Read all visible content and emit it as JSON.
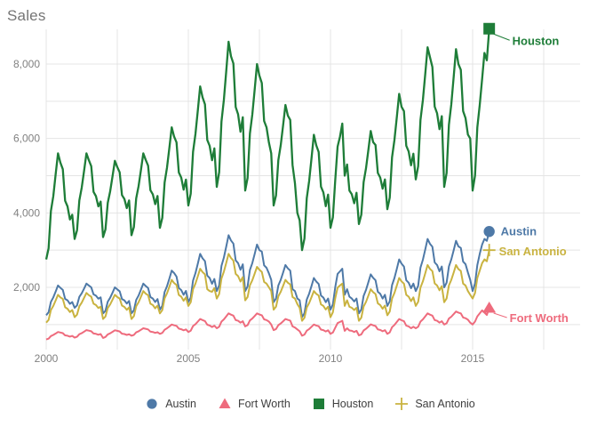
{
  "title": {
    "text": "Sales"
  },
  "legend": {
    "items": [
      {
        "label": "Austin"
      },
      {
        "label": "Fort Worth"
      },
      {
        "label": "Houston"
      },
      {
        "label": "San Antonio"
      }
    ]
  },
  "axes": {
    "x_tick_labels": [
      "2000",
      "2005",
      "2010",
      "2015"
    ],
    "y_tick_labels": [
      "2,000",
      "4,000",
      "6,000",
      "8,000"
    ]
  },
  "colors": {
    "austin": "#4e79a7",
    "fort_worth": "#ee6b7d",
    "houston": "#1e7d38",
    "san_antonio": "#c9b340",
    "grid": "#e4e4e4",
    "axis_text": "#818181",
    "title_text": "#757575",
    "legend_text": "#3f3f3f"
  },
  "chart_data": {
    "type": "line",
    "title": "Sales",
    "ylabel": "Sales",
    "x_start_year": 2000,
    "x_step_months": 1,
    "x_ticks": [
      {
        "value": 2000,
        "label": "2000"
      },
      {
        "value": 2005,
        "label": "2005"
      },
      {
        "value": 2010,
        "label": "2010"
      },
      {
        "value": 2015,
        "label": "2015"
      }
    ],
    "x_gridline_step_years": 2.5,
    "x_gridline_max": 2017.5,
    "y_ticks": [
      {
        "value": 2000,
        "label": "2,000"
      },
      {
        "value": 4000,
        "label": "4,000"
      },
      {
        "value": 6000,
        "label": "6,000"
      },
      {
        "value": 8000,
        "label": "8,000"
      }
    ],
    "y_gridline_step": 1000,
    "y_range": [
      320,
      8940
    ],
    "x_range": [
      2000,
      2018.8
    ],
    "grid": true,
    "legend_position": "bottom",
    "series": [
      {
        "name": "Austin",
        "color": "#4e79a7",
        "marker": "circle",
        "end_label": "Austin",
        "values": [
          1250,
          1330,
          1610,
          1730,
          1890,
          2050,
          1985,
          1930,
          1690,
          1650,
          1555,
          1605,
          1450,
          1515,
          1745,
          1840,
          1970,
          2100,
          2050,
          2000,
          1810,
          1775,
          1695,
          1730,
          1300,
          1370,
          1615,
          1720,
          1860,
          2000,
          1945,
          1895,
          1685,
          1650,
          1565,
          1635,
          1300,
          1380,
          1660,
          1780,
          1940,
          2100,
          2035,
          1980,
          1740,
          1700,
          1605,
          1685,
          1400,
          1505,
          1875,
          2030,
          2240,
          2450,
          2385,
          2290,
          1980,
          1925,
          1800,
          1905,
          1600,
          1730,
          2185,
          2380,
          2640,
          2900,
          2780,
          2705,
          2315,
          2250,
          2095,
          2225,
          1900,
          2050,
          2575,
          2800,
          3100,
          3400,
          3260,
          3175,
          2725,
          2650,
          2470,
          2620,
          1900,
          2025,
          2465,
          2650,
          2900,
          3150,
          3000,
          2960,
          2590,
          2525,
          2375,
          2200,
          1600,
          1700,
          2050,
          2200,
          2400,
          2600,
          2510,
          2450,
          1950,
          1900,
          1700,
          1650,
          1200,
          1305,
          1670,
          1830,
          2040,
          2250,
          2155,
          2090,
          1780,
          1725,
          1600,
          1700,
          1400,
          1540,
          1995,
          2360,
          2430,
          2500,
          1800,
          1950,
          1750,
          1700,
          1620,
          1700,
          1300,
          1405,
          1770,
          1930,
          2140,
          2350,
          2255,
          2190,
          1880,
          1825,
          1700,
          1800,
          1500,
          1625,
          2060,
          2250,
          2500,
          2750,
          2635,
          2560,
          2190,
          2125,
          1975,
          2100,
          1900,
          2040,
          2530,
          2740,
          3020,
          3300,
          3170,
          3090,
          2670,
          2600,
          2430,
          2560,
          2000,
          2125,
          2560,
          2750,
          3000,
          3250,
          3100,
          3060,
          2690,
          2625,
          2400,
          2200,
          1900,
          2100,
          2600,
          2900,
          3150,
          3300,
          3250,
          3500
        ]
      },
      {
        "name": "Fort Worth",
        "color": "#ee6b7d",
        "marker": "triangle",
        "end_label": "Fort Worth",
        "values": [
          600,
          620,
          690,
          720,
          760,
          800,
          785,
          770,
          710,
          700,
          675,
          695,
          650,
          670,
          740,
          770,
          810,
          850,
          835,
          820,
          760,
          750,
          725,
          745,
          640,
          665,
          735,
          765,
          805,
          845,
          830,
          815,
          755,
          745,
          720,
          740,
          700,
          720,
          790,
          820,
          860,
          900,
          885,
          870,
          810,
          800,
          775,
          795,
          750,
          775,
          860,
          900,
          950,
          1000,
          980,
          965,
          890,
          875,
          845,
          870,
          800,
          835,
          960,
          1010,
          1080,
          1150,
          1120,
          1095,
          995,
          975,
          935,
          970,
          900,
          940,
          1080,
          1140,
          1220,
          1300,
          1265,
          1240,
          1120,
          1100,
          1050,
          1090,
          950,
          985,
          1110,
          1160,
          1230,
          1300,
          1270,
          1250,
          1140,
          1120,
          1080,
          1000,
          850,
          880,
          985,
          1030,
          1090,
          1150,
          1125,
          1105,
          950,
          920,
          870,
          820,
          700,
          730,
          835,
          880,
          940,
          1000,
          975,
          955,
          865,
          850,
          815,
          845,
          750,
          785,
          910,
          1040,
          1070,
          1100,
          830,
          900,
          840,
          830,
          800,
          830,
          710,
          735,
          840,
          885,
          945,
          1005,
          980,
          960,
          870,
          855,
          820,
          850,
          750,
          790,
          930,
          990,
          1070,
          1150,
          1115,
          1090,
          970,
          950,
          900,
          940,
          900,
          940,
          1080,
          1140,
          1220,
          1300,
          1265,
          1240,
          1120,
          1100,
          1050,
          1090,
          1000,
          1035,
          1160,
          1210,
          1280,
          1350,
          1320,
          1300,
          1190,
          1170,
          1130,
          1050,
          1000,
          1080,
          1220,
          1300,
          1380,
          1320,
          1260,
          1450
        ]
      },
      {
        "name": "Houston",
        "color": "#1e7d38",
        "marker": "square",
        "end_label": "Houston",
        "values": [
          2750,
          3050,
          4050,
          4450,
          5050,
          5600,
          5350,
          5175,
          4325,
          4175,
          3825,
          3950,
          3300,
          3530,
          4335,
          4680,
          5140,
          5600,
          5415,
          5255,
          4565,
          4450,
          4175,
          4305,
          3350,
          3555,
          4270,
          4580,
          4990,
          5400,
          5235,
          5090,
          4480,
          4375,
          4130,
          4335,
          3400,
          3620,
          4390,
          4720,
          5160,
          5600,
          5425,
          5270,
          4610,
          4500,
          4235,
          4455,
          3600,
          3870,
          4815,
          5220,
          5760,
          6300,
          6050,
          5895,
          5085,
          4950,
          4625,
          4895,
          4200,
          4520,
          5640,
          6120,
          6760,
          7400,
          7105,
          6920,
          5960,
          5800,
          5415,
          5735,
          4700,
          5090,
          6455,
          7040,
          7820,
          8600,
          8210,
          8015,
          6845,
          6650,
          6180,
          6570,
          4600,
          4940,
          6130,
          6640,
          7320,
          8000,
          7690,
          7490,
          6470,
          6300,
          5890,
          5600,
          4200,
          4470,
          5415,
          5820,
          6360,
          6900,
          6615,
          6500,
          5285,
          4800,
          4000,
          3800,
          3000,
          3310,
          4395,
          4860,
          5480,
          6100,
          5815,
          5635,
          4705,
          4550,
          4180,
          4490,
          3600,
          3880,
          4860,
          5780,
          6050,
          6400,
          5000,
          5300,
          4600,
          4500,
          4260,
          4540,
          3700,
          3950,
          4825,
          5200,
          5700,
          6200,
          5900,
          5825,
          5075,
          4950,
          4650,
          4900,
          4100,
          4410,
          5495,
          5960,
          6580,
          7200,
          6850,
          6735,
          5805,
          5650,
          5280,
          5590,
          4900,
          5255,
          6500,
          7030,
          7740,
          8450,
          8185,
          7920,
          6855,
          6675,
          6250,
          6600,
          4700,
          5070,
          6365,
          6920,
          7660,
          8400,
          8000,
          7845,
          6735,
          6550,
          6105,
          6000,
          4600,
          5000,
          6300,
          6900,
          7600,
          8300,
          8100,
          8950
        ]
      },
      {
        "name": "San Antonio",
        "color": "#c9b340",
        "marker": "plus",
        "end_label": "San Antonio",
        "values": [
          1050,
          1125,
          1390,
          1500,
          1650,
          1800,
          1730,
          1690,
          1465,
          1425,
          1335,
          1390,
          1200,
          1265,
          1490,
          1590,
          1720,
          1850,
          1790,
          1750,
          1560,
          1525,
          1445,
          1480,
          1150,
          1215,
          1445,
          1540,
          1670,
          1800,
          1740,
          1700,
          1510,
          1475,
          1395,
          1460,
          1150,
          1225,
          1490,
          1600,
          1750,
          1900,
          1830,
          1790,
          1560,
          1525,
          1435,
          1510,
          1300,
          1390,
          1705,
          1840,
          2020,
          2200,
          2115,
          2065,
          1795,
          1750,
          1640,
          1730,
          1500,
          1600,
          1950,
          2100,
          2300,
          2500,
          2410,
          2350,
          1950,
          1900,
          1880,
          1980,
          1700,
          1820,
          2240,
          2420,
          2660,
          2900,
          2790,
          2720,
          2360,
          2300,
          2155,
          2275,
          1650,
          1740,
          2055,
          2190,
          2370,
          2550,
          2470,
          2415,
          2145,
          2100,
          2000,
          1900,
          1400,
          1480,
          1760,
          1880,
          2040,
          2200,
          2125,
          2080,
          1740,
          1700,
          1550,
          1450,
          1100,
          1180,
          1460,
          1580,
          1740,
          1900,
          1825,
          1780,
          1540,
          1500,
          1405,
          1480,
          1200,
          1330,
          1700,
          1990,
          2050,
          2100,
          1500,
          1650,
          1480,
          1450,
          1390,
          1450,
          1100,
          1185,
          1485,
          1610,
          1780,
          1950,
          1870,
          1820,
          1570,
          1525,
          1425,
          1510,
          1250,
          1350,
          1700,
          1850,
          2050,
          2250,
          2160,
          2100,
          1800,
          1750,
          1630,
          1730,
          1500,
          1610,
          1995,
          2160,
          2380,
          2600,
          2495,
          2435,
          2105,
          2050,
          1920,
          2030,
          1600,
          1700,
          2050,
          2200,
          2400,
          2600,
          2490,
          2440,
          2100,
          2050,
          1900,
          1800,
          1700,
          1850,
          2250,
          2450,
          2650,
          2750,
          2700,
          3000
        ]
      }
    ]
  }
}
